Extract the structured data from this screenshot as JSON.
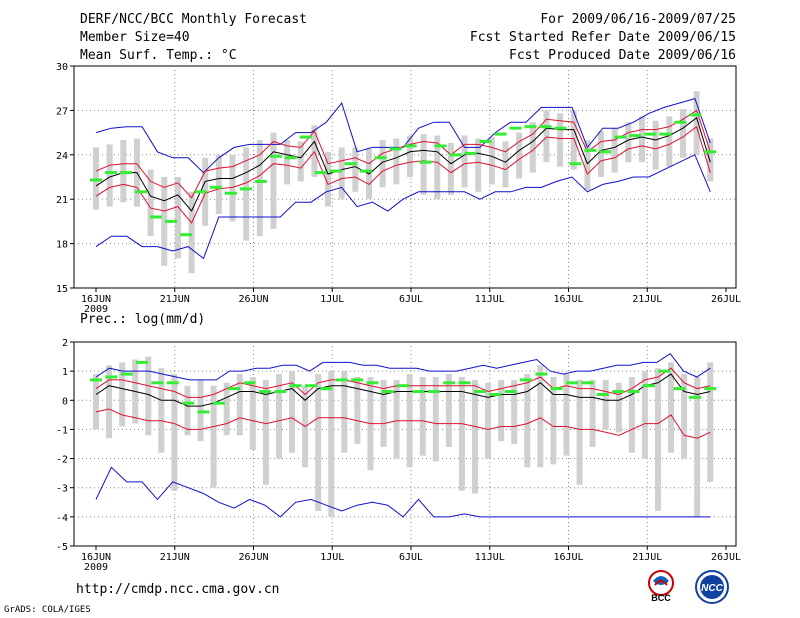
{
  "header": {
    "title": "DERF/NCC/BCC Monthly Forecast",
    "member_size": "Member Size=40",
    "variable": "Mean Surf. Temp.: °C",
    "period": "For 2009/06/16-2009/07/25",
    "started": "Fcst Started Refer Date 2009/06/15",
    "produced": "Fcst Produced Date 2009/06/16"
  },
  "footer": {
    "url": "http://cmdp.ncc.cma.gov.cn",
    "grads": "GrADS: COLA/IGES",
    "logo_bcc": "BCC",
    "logo_ncc": "NCC"
  },
  "colors": {
    "ensemble_mean": "#000000",
    "plus_minus_sd": "#e01030",
    "extremes": "#1010cc",
    "member_range_bar": "#d0d0d0",
    "climatology": "#33ee33",
    "grid": "#888888"
  },
  "chart_data": [
    {
      "type": "line",
      "title": "Mean Surf. Temp.: °C",
      "x_tick_labels": [
        "16JUN",
        "21JUN",
        "26JUN",
        "1JUL",
        "6JUL",
        "11JUL",
        "16JUL",
        "21JUL",
        "26JUL"
      ],
      "x_year_label": "2009",
      "ylim": [
        15,
        30
      ],
      "y_ticks": [
        15,
        18,
        21,
        24,
        27,
        30
      ],
      "days": 40,
      "series": [
        {
          "name": "max",
          "values": [
            25.5,
            25.8,
            25.9,
            25.9,
            24.2,
            23.8,
            23.8,
            22.8,
            23.8,
            24.5,
            24.7,
            24.7,
            24.7,
            25.5,
            25.5,
            26.2,
            27.5,
            24.2,
            24.5,
            24.5,
            24.5,
            25.8,
            26.2,
            26.2,
            24.5,
            24.5,
            25.5,
            26.2,
            26.2,
            27.2,
            27.2,
            27.2,
            24.5,
            25.8,
            25.8,
            26.2,
            26.8,
            27.2,
            27.5,
            27.8,
            24.8
          ]
        },
        {
          "name": "plus_sd",
          "values": [
            22.9,
            23.3,
            23.4,
            23.4,
            22.2,
            21.8,
            22.1,
            21.1,
            22.9,
            23.1,
            23.2,
            23.6,
            24.0,
            24.9,
            24.6,
            24.5,
            25.6,
            23.4,
            23.6,
            23.8,
            23.4,
            24.1,
            24.4,
            24.7,
            24.9,
            24.8,
            24.0,
            24.7,
            24.7,
            24.5,
            24.2,
            24.9,
            25.4,
            26.4,
            26.3,
            26.2,
            24.2,
            24.9,
            25.0,
            25.5,
            25.7,
            25.7,
            25.9,
            26.4,
            27.0,
            24.2
          ]
        },
        {
          "name": "mean",
          "values": [
            21.9,
            22.5,
            22.8,
            22.8,
            21.2,
            20.9,
            21.3,
            20.2,
            22.2,
            22.4,
            22.4,
            22.8,
            23.3,
            24.2,
            24.0,
            23.8,
            24.9,
            22.7,
            23.0,
            23.2,
            22.7,
            23.5,
            23.8,
            24.2,
            24.3,
            24.2,
            23.4,
            24.0,
            24.1,
            23.9,
            23.5,
            24.3,
            24.9,
            25.8,
            25.7,
            25.7,
            23.4,
            24.3,
            24.5,
            25.0,
            25.2,
            25.0,
            25.3,
            25.8,
            26.5,
            23.5
          ]
        },
        {
          "name": "minus_sd",
          "values": [
            21.2,
            21.8,
            22.0,
            21.8,
            20.4,
            20.2,
            20.5,
            19.4,
            21.4,
            21.7,
            21.8,
            22.1,
            22.6,
            23.4,
            23.3,
            23.1,
            24.2,
            22.0,
            22.4,
            22.5,
            22.0,
            22.9,
            23.3,
            23.5,
            23.6,
            23.5,
            22.8,
            23.4,
            23.5,
            23.3,
            23.0,
            23.7,
            24.3,
            25.2,
            25.1,
            25.1,
            22.7,
            23.6,
            23.8,
            24.4,
            24.6,
            24.4,
            24.7,
            25.2,
            25.9,
            22.8
          ]
        },
        {
          "name": "min",
          "values": [
            17.8,
            18.5,
            18.5,
            17.8,
            17.8,
            17.5,
            17.8,
            17.0,
            19.8,
            19.8,
            19.8,
            19.8,
            19.8,
            20.8,
            20.8,
            21.5,
            21.8,
            20.5,
            20.8,
            20.2,
            21.0,
            21.5,
            21.5,
            21.5,
            21.5,
            21.0,
            21.5,
            21.5,
            21.8,
            21.8,
            22.2,
            22.5,
            21.5,
            22.0,
            22.2,
            22.5,
            22.5,
            23.0,
            23.5,
            24.0,
            21.5
          ]
        },
        {
          "name": "climatology",
          "values": [
            22.3,
            22.8,
            22.8,
            21.5,
            19.8,
            19.5,
            18.6,
            21.5,
            21.8,
            21.4,
            21.7,
            22.2,
            23.9,
            23.8,
            25.2,
            22.8,
            22.9,
            23.4,
            22.9,
            23.8,
            24.4,
            24.6,
            23.5,
            24.6,
            24.0,
            24.1,
            24.9,
            25.4,
            25.8,
            25.9,
            25.9,
            25.8,
            23.4,
            24.3,
            24.2,
            25.2,
            25.3,
            25.4,
            25.4,
            26.2,
            26.7,
            24.2
          ]
        },
        {
          "name": "member_range_top",
          "values": [
            24.5,
            24.7,
            25.0,
            25.1,
            23.0,
            22.5,
            22.5,
            21.5,
            23.8,
            24.0,
            24.0,
            24.5,
            25.0,
            25.5,
            25.0,
            24.9,
            26.0,
            24.2,
            24.5,
            24.5,
            24.4,
            25.0,
            25.1,
            25.3,
            25.4,
            25.3,
            24.8,
            25.3,
            25.1,
            25.2,
            24.9,
            25.5,
            26.2,
            27.0,
            26.8,
            27.0,
            25.0,
            25.6,
            25.8,
            26.2,
            26.6,
            26.3,
            26.6,
            27.1,
            28.3,
            25.1
          ]
        },
        {
          "name": "member_range_bottom",
          "values": [
            20.3,
            20.5,
            20.8,
            20.5,
            18.5,
            16.5,
            17.0,
            16.0,
            19.2,
            20.0,
            19.5,
            18.2,
            18.5,
            19.0,
            22.0,
            22.2,
            22.5,
            20.5,
            21.0,
            21.5,
            21.0,
            21.8,
            22.0,
            22.5,
            21.3,
            21.0,
            21.3,
            21.8,
            21.5,
            22.0,
            21.8,
            22.4,
            22.8,
            23.5,
            23.2,
            23.0,
            21.6,
            22.5,
            22.8,
            23.5,
            23.5,
            23.0,
            23.2,
            23.8,
            24.0,
            22.2
          ]
        }
      ]
    },
    {
      "type": "line",
      "title": "Prec.: log(mm/d)",
      "x_tick_labels": [
        "16JUN",
        "21JUN",
        "26JUN",
        "1JUL",
        "6JUL",
        "11JUL",
        "16JUL",
        "21JUL",
        "26JUL"
      ],
      "x_year_label": "2009",
      "ylim": [
        -5,
        2
      ],
      "y_ticks": [
        -5,
        -4,
        -3,
        -2,
        -1,
        0,
        1,
        2
      ],
      "days": 40,
      "series": [
        {
          "name": "max",
          "values": [
            0.8,
            1.1,
            1.0,
            1.0,
            1.0,
            0.9,
            0.8,
            0.7,
            0.7,
            0.7,
            1.0,
            1.0,
            1.1,
            1.1,
            1.2,
            1.2,
            1.0,
            1.3,
            1.3,
            1.3,
            1.2,
            1.2,
            1.1,
            1.1,
            1.1,
            1.0,
            1.0,
            1.0,
            1.1,
            1.2,
            1.1,
            1.2,
            1.3,
            1.4,
            1.0,
            0.9,
            1.0,
            1.0,
            1.1,
            1.2,
            1.2,
            1.3,
            1.3,
            1.6,
            1.0,
            0.8,
            1.1
          ]
        },
        {
          "name": "plus_sd",
          "values": [
            0.4,
            0.7,
            0.7,
            0.6,
            0.5,
            0.4,
            0.3,
            0.1,
            0.1,
            0.2,
            0.4,
            0.6,
            0.5,
            0.4,
            0.5,
            0.6,
            0.2,
            0.6,
            0.7,
            0.7,
            0.6,
            0.5,
            0.4,
            0.5,
            0.5,
            0.5,
            0.5,
            0.5,
            0.5,
            0.5,
            0.3,
            0.4,
            0.5,
            0.6,
            0.8,
            0.4,
            0.5,
            0.4,
            0.4,
            0.3,
            0.2,
            0.4,
            0.7,
            0.8,
            1.1,
            0.6,
            0.4,
            0.5
          ]
        },
        {
          "name": "mean",
          "values": [
            0.2,
            0.5,
            0.4,
            0.3,
            0.2,
            0.0,
            0.0,
            -0.2,
            -0.2,
            -0.1,
            0.1,
            0.3,
            0.3,
            0.2,
            0.3,
            0.4,
            0.0,
            0.4,
            0.5,
            0.5,
            0.4,
            0.3,
            0.2,
            0.3,
            0.3,
            0.3,
            0.3,
            0.3,
            0.3,
            0.2,
            0.1,
            0.2,
            0.2,
            0.3,
            0.6,
            0.2,
            0.2,
            0.1,
            0.1,
            0.0,
            0.0,
            0.2,
            0.5,
            0.6,
            0.9,
            0.3,
            0.2,
            0.3
          ]
        },
        {
          "name": "minus_sd",
          "values": [
            -0.4,
            -0.3,
            -0.5,
            -0.6,
            -0.7,
            -0.7,
            -0.8,
            -1.0,
            -1.0,
            -0.9,
            -0.8,
            -0.6,
            -0.7,
            -0.8,
            -0.7,
            -0.6,
            -0.9,
            -0.6,
            -0.6,
            -0.6,
            -0.7,
            -0.8,
            -0.8,
            -0.7,
            -0.7,
            -0.7,
            -0.8,
            -0.8,
            -0.8,
            -0.9,
            -1.0,
            -0.9,
            -0.9,
            -0.8,
            -0.6,
            -0.9,
            -0.9,
            -1.0,
            -1.0,
            -1.1,
            -1.2,
            -1.0,
            -0.8,
            -0.8,
            -0.5,
            -1.2,
            -1.3,
            -1.1
          ]
        },
        {
          "name": "min",
          "values": [
            -3.4,
            -2.3,
            -2.8,
            -2.8,
            -3.4,
            -2.8,
            -3.0,
            -3.2,
            -3.5,
            -3.7,
            -3.4,
            -3.6,
            -4.0,
            -3.5,
            -3.4,
            -3.6,
            -3.8,
            -3.6,
            -3.5,
            -3.6,
            -4.0,
            -3.4,
            -4.0,
            -4.0,
            -3.9,
            -4.0,
            -4.0,
            -4.0,
            -4.0,
            -4.0,
            -4.0,
            -4.0,
            -4.0,
            -4.0,
            -4.0,
            -4.0,
            -4.0,
            -4.0,
            -4.0,
            -4.0,
            -4.0
          ]
        },
        {
          "name": "climatology",
          "values": [
            0.7,
            0.8,
            0.9,
            1.3,
            0.6,
            0.6,
            -0.1,
            -0.4,
            -0.1,
            0.4,
            0.6,
            0.3,
            0.3,
            0.5,
            0.5,
            0.4,
            0.7,
            0.7,
            0.6,
            0.3,
            0.5,
            0.3,
            0.3,
            0.6,
            0.6,
            0.3,
            0.2,
            0.3,
            0.7,
            0.9,
            0.4,
            0.6,
            0.6,
            0.2,
            0.3,
            0.3,
            0.5,
            1.0,
            0.4,
            0.1,
            0.4
          ]
        },
        {
          "name": "member_range_top",
          "values": [
            0.9,
            1.2,
            1.3,
            1.4,
            1.5,
            1.1,
            0.9,
            0.5,
            0.7,
            0.5,
            0.6,
            0.9,
            0.8,
            0.7,
            0.9,
            1.0,
            0.5,
            0.9,
            1.0,
            1.0,
            0.8,
            0.8,
            0.7,
            0.7,
            0.9,
            0.8,
            0.8,
            0.9,
            0.8,
            0.7,
            0.6,
            0.7,
            0.7,
            0.9,
            1.2,
            0.8,
            0.9,
            0.7,
            0.7,
            0.7,
            0.6,
            0.8,
            1.0,
            1.1,
            1.3,
            0.9,
            0.8,
            1.3
          ]
        },
        {
          "name": "member_range_bottom",
          "values": [
            -1.0,
            -1.3,
            -0.9,
            -0.8,
            -1.2,
            -1.8,
            -3.1,
            -1.2,
            -1.4,
            -3.0,
            -1.2,
            -1.2,
            -1.7,
            -2.9,
            -2.0,
            -1.8,
            -2.3,
            -3.8,
            -4.0,
            -1.8,
            -1.5,
            -2.4,
            -1.6,
            -2.0,
            -2.3,
            -1.9,
            -2.1,
            -1.6,
            -3.1,
            -3.2,
            -2.0,
            -1.4,
            -1.5,
            -2.3,
            -2.3,
            -2.2,
            -1.9,
            -2.9,
            -1.6,
            -1.0,
            -1.1,
            -1.8,
            -2.0,
            -3.8,
            -1.8,
            -2.0,
            -4.0,
            -2.8
          ]
        }
      ]
    }
  ]
}
